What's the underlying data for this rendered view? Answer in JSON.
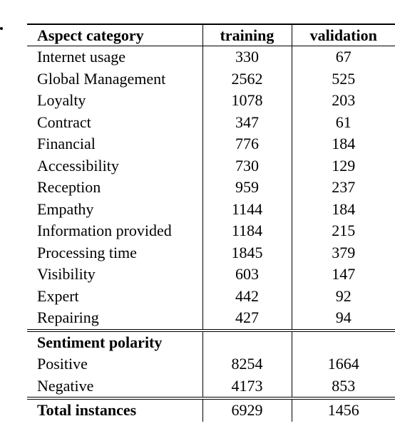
{
  "table": {
    "headers": [
      "Aspect category",
      "training",
      "validation"
    ],
    "aspect_rows": [
      {
        "label": "Internet usage",
        "training": "330",
        "validation": "67"
      },
      {
        "label": "Global Management",
        "training": "2562",
        "validation": "525"
      },
      {
        "label": "Loyalty",
        "training": "1078",
        "validation": "203"
      },
      {
        "label": "Contract",
        "training": "347",
        "validation": "61"
      },
      {
        "label": "Financial",
        "training": "776",
        "validation": "184"
      },
      {
        "label": "Accessibility",
        "training": "730",
        "validation": "129"
      },
      {
        "label": "Reception",
        "training": "959",
        "validation": "237"
      },
      {
        "label": "Empathy",
        "training": "1144",
        "validation": "184"
      },
      {
        "label": "Information provided",
        "training": "1184",
        "validation": "215"
      },
      {
        "label": "Processing time",
        "training": "1845",
        "validation": "379"
      },
      {
        "label": "Visibility",
        "training": "603",
        "validation": "147"
      },
      {
        "label": "Expert",
        "training": "442",
        "validation": "92"
      },
      {
        "label": "Repairing",
        "training": "427",
        "validation": "94"
      }
    ],
    "sentiment_heading": "Sentiment polarity",
    "sentiment_rows": [
      {
        "label": "Positive",
        "training": "8254",
        "validation": "1664"
      },
      {
        "label": "Negative",
        "training": "4173",
        "validation": "853"
      }
    ],
    "total": {
      "label": "Total instances",
      "training": "6929",
      "validation": "1456"
    }
  }
}
